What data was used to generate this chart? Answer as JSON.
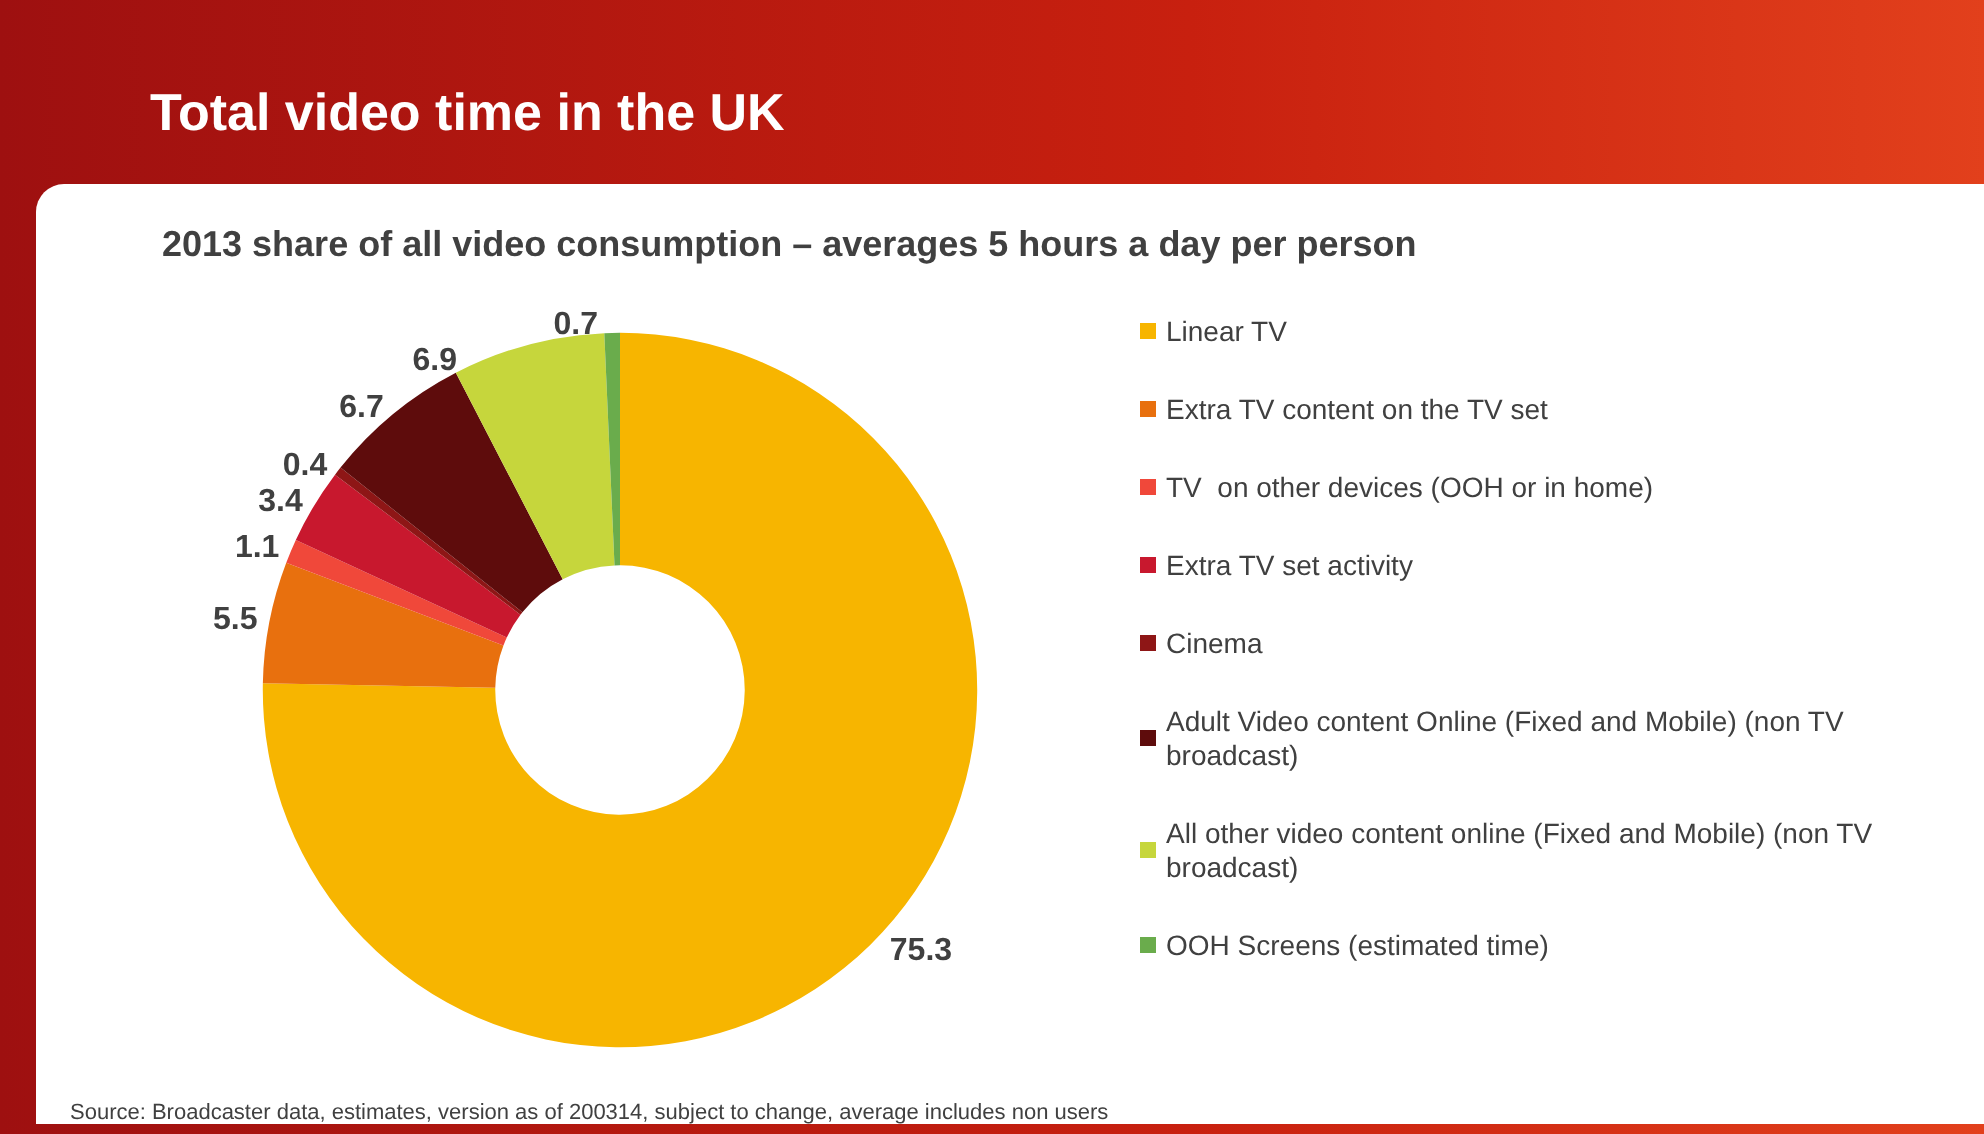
{
  "chart_data": {
    "type": "donut",
    "title": "Total video time in the UK",
    "subtitle": "2013 share of all video consumption – averages 5 hours a day per person",
    "categories": [
      "Linear TV",
      "Extra TV content on the TV set",
      "TV  on other devices (OOH or in home)",
      "Extra TV set activity",
      "Cinema",
      "Adult Video content Online (Fixed and Mobile) (non TV broadcast)",
      "All other video content online (Fixed and Mobile) (non TV broadcast)",
      "OOH Screens (estimated time)"
    ],
    "values": [
      75.3,
      5.5,
      1.1,
      3.4,
      0.4,
      6.7,
      6.9,
      0.7
    ],
    "colors": [
      "#f7b500",
      "#e8700e",
      "#f0483a",
      "#c8182e",
      "#8e1616",
      "#5e0c0c",
      "#c6d63c",
      "#6aac4c"
    ],
    "data_labels": true,
    "legend": "right",
    "annotations": [
      "Source: Broadcaster data, estimates, version as of 200314, subject to change, average includes non users"
    ]
  }
}
